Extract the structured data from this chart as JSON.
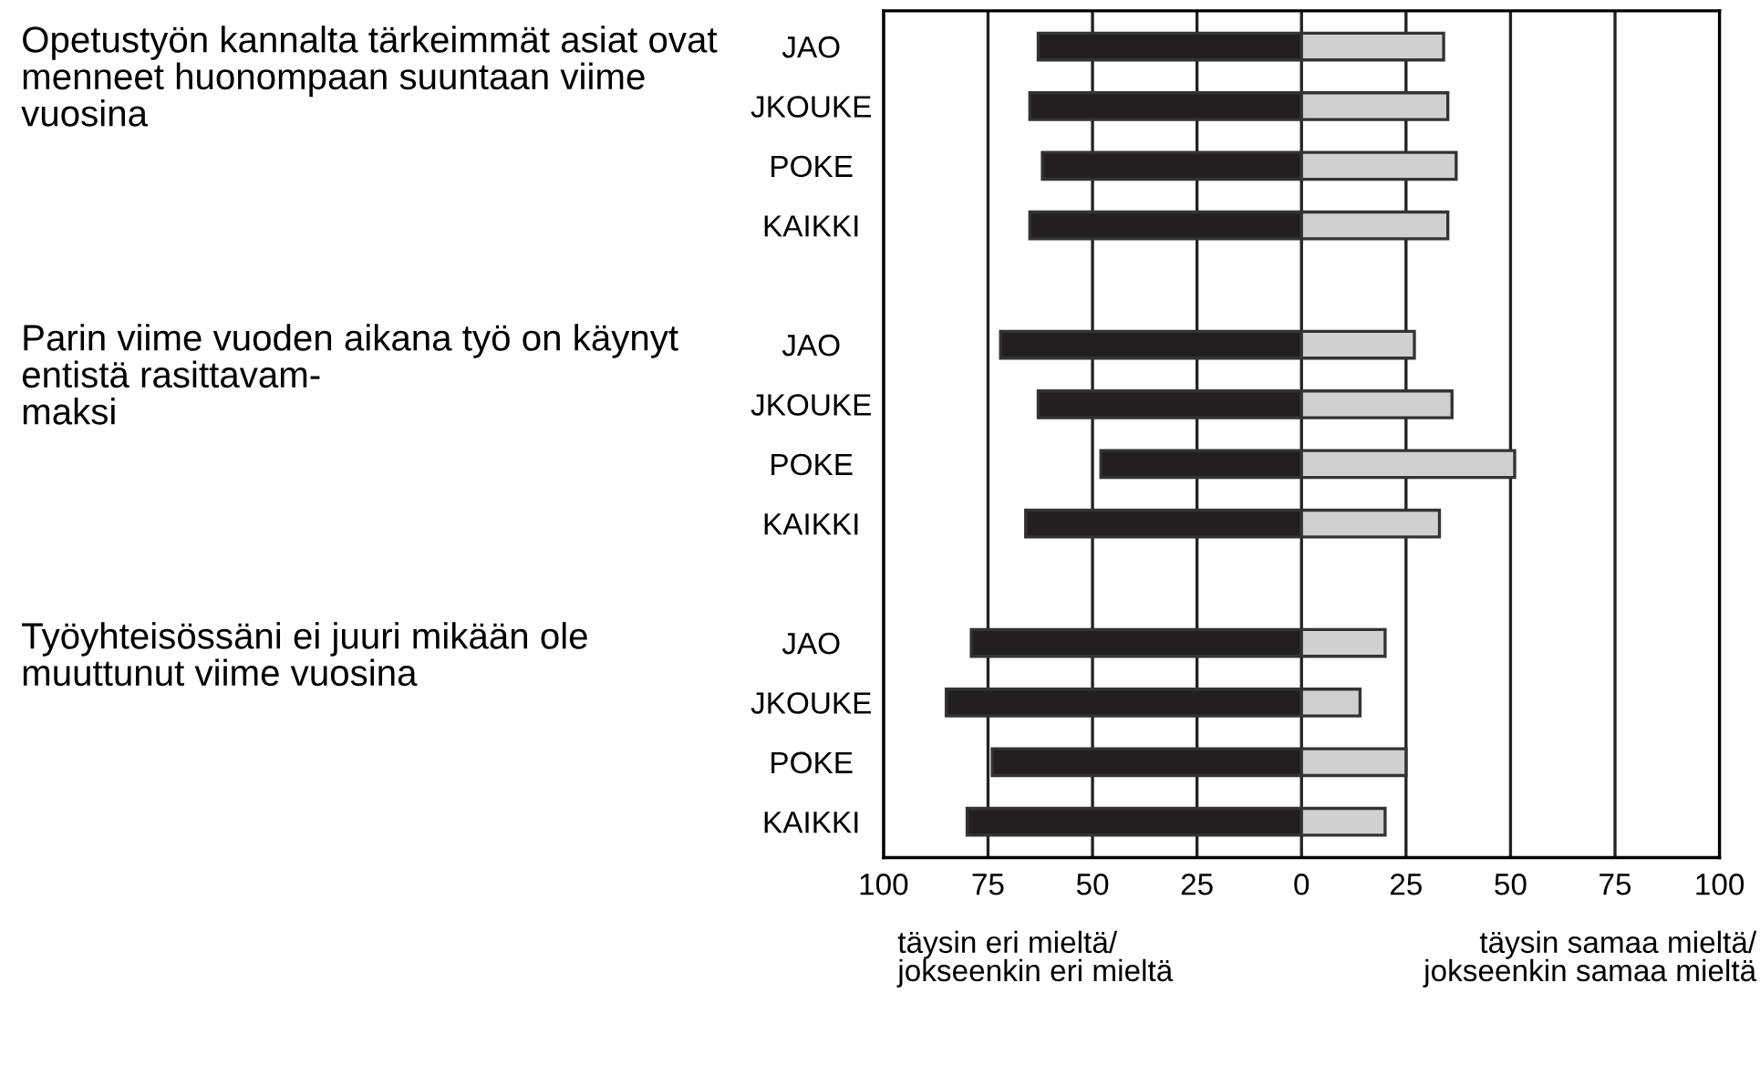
{
  "chart_data": {
    "type": "bar",
    "orientation": "horizontal",
    "stacked": true,
    "categories": [
      "JAO",
      "JKOUKE",
      "POKE",
      "KAIKKI",
      null,
      "JAO",
      "JKOUKE",
      "POKE",
      "KAIKKI",
      null,
      "JAO",
      "JKOUKE",
      "POKE",
      "KAIKKI"
    ],
    "series": [
      {
        "color": "#231f20",
        "values": [
          -63,
          -65,
          -62,
          -65,
          null,
          -72,
          -63,
          -48,
          -66,
          null,
          -79,
          -85,
          -74,
          -80
        ]
      },
      {
        "color": "#d0d0d0",
        "values": [
          34,
          35,
          37,
          35,
          null,
          27,
          36,
          51,
          33,
          null,
          20,
          14,
          25,
          20
        ]
      }
    ],
    "xlim": [
      -100,
      100
    ],
    "xticks": [
      {
        "value": -100,
        "label": "100"
      },
      {
        "value": -75,
        "label": "75"
      },
      {
        "value": -50,
        "label": "50"
      },
      {
        "value": -25,
        "label": "25"
      },
      0,
      25,
      50,
      75,
      100
    ],
    "grid": "x",
    "annotations": [
      "Opetustyön kannalta tärkeimmät asiat ovat menneet huonompaan suuntaan viime vuosina",
      "Parin viime vuoden aikana työ on käynyt entistä rasittavam-\nmaksi",
      "Työyhteisössäni ei juuri mikään ole muuttunut viime vuosina",
      "täysin eri mieltä/\njokseenkin eri mieltä",
      "täysin samaa mieltä/\njokseenkin samaa mieltä"
    ]
  }
}
